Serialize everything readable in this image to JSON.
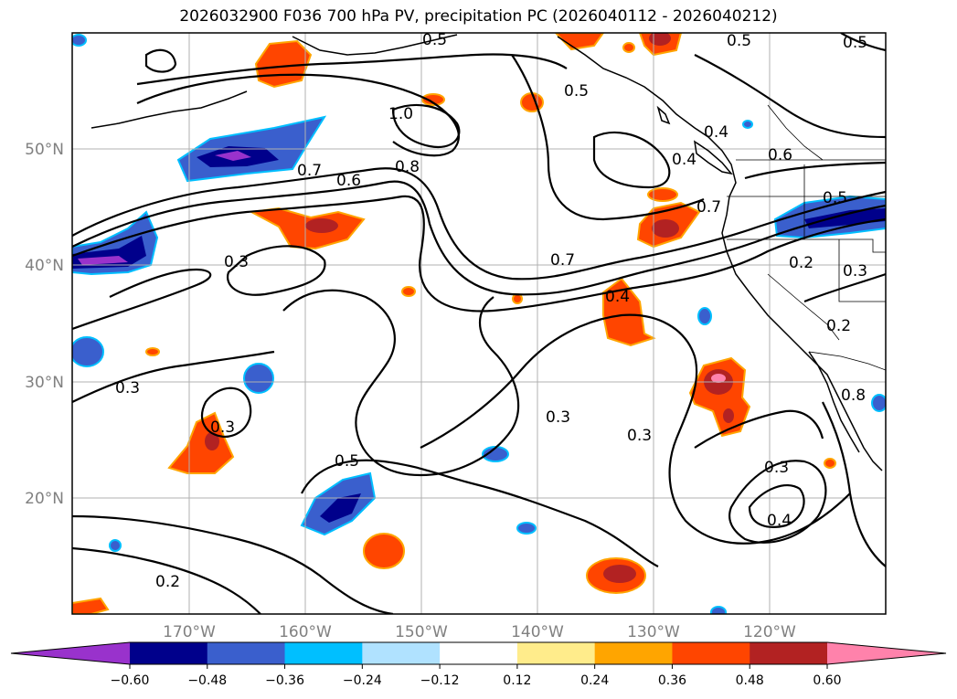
{
  "title": "2026032900 F036 700 hPa PV, precipitation PC (2026040112 - 2026040212)",
  "lat_labels": [
    "50°N",
    "40°N",
    "30°N",
    "20°N"
  ],
  "lon_labels": [
    "170°W",
    "160°W",
    "150°W",
    "140°W",
    "130°W",
    "120°W"
  ],
  "colorbar": {
    "colors": [
      "#9932CC",
      "#00008B",
      "#3A5FCD",
      "#00BFFF",
      "#B0E2FF",
      "#FFFFFF",
      "#FFEC8B",
      "#FFA500",
      "#FF4500",
      "#B22222",
      "#FF82AB"
    ],
    "tick_labels": [
      "−0.60",
      "−0.48",
      "−0.36",
      "−0.24",
      "−0.12",
      "0.12",
      "0.24",
      "0.36",
      "0.48",
      "0.60"
    ]
  },
  "contour_labels": [
    "0.5",
    "0.5",
    "0.5",
    "0.5",
    "1.0",
    "0.4",
    "0.6",
    "0.7",
    "0.6",
    "0.8",
    "0.4",
    "0.5",
    "0.7",
    "0.3",
    "0.7",
    "0.2",
    "0.3",
    "0.4",
    "0.2",
    "0.3",
    "0.3",
    "0.3",
    "0.3",
    "0.5",
    "0.3",
    "0.4",
    "0.2",
    "0.8"
  ]
}
